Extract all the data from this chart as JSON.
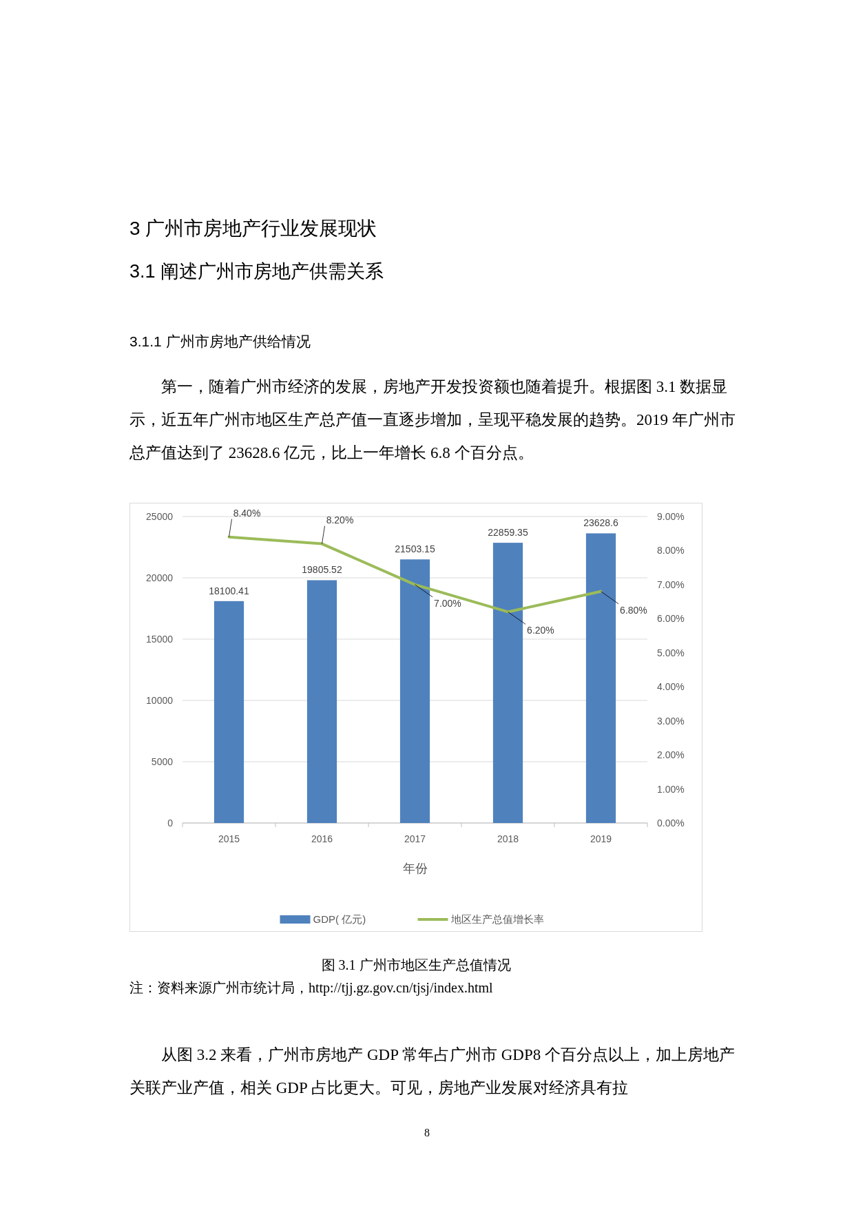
{
  "chart_data": {
    "type": "bar",
    "title": "图 3.1 广州市地区生产总值情况",
    "xlabel": "年份",
    "categories": [
      "2015",
      "2016",
      "2017",
      "2018",
      "2019"
    ],
    "series": [
      {
        "name": "GDP( 亿元)",
        "color": "#4f81bd",
        "values": [
          18100.41,
          19805.52,
          21503.15,
          22859.35,
          23628.6
        ],
        "value_labels": [
          "18100.41",
          "19805.52",
          "21503.15",
          "22859.35",
          "23628.6"
        ]
      },
      {
        "name": "地区生产总值增长率",
        "type": "line",
        "axis": "y2",
        "color": "#9bbb59",
        "values": [
          8.4,
          8.2,
          7.0,
          6.2,
          6.8
        ],
        "value_labels": [
          "8.40%",
          "8.20%",
          "7.00%",
          "6.20%",
          "6.80%"
        ]
      }
    ],
    "ylim": [
      0,
      25000
    ],
    "yticks": [
      0,
      5000,
      10000,
      15000,
      20000,
      25000
    ],
    "y2lim": [
      0,
      9
    ],
    "y2ticks": [
      {
        "value": 0,
        "label": "0.00%"
      },
      {
        "value": 1,
        "label": "1.00%"
      },
      {
        "value": 2,
        "label": "2.00%"
      },
      {
        "value": 3,
        "label": "3.00%"
      },
      {
        "value": 4,
        "label": "4.00%"
      },
      {
        "value": 5,
        "label": "5.00%"
      },
      {
        "value": 6,
        "label": "6.00%"
      },
      {
        "value": 7,
        "label": "7.00%"
      },
      {
        "value": 8,
        "label": "8.00%"
      },
      {
        "value": 9,
        "label": "9.00%"
      }
    ],
    "grid": "y",
    "legend": "bottom",
    "marker": "none",
    "annotations": [
      "3 广州市房地产行业发展现状",
      "3.1 阐述广州市房地产供需关系",
      "3.1.1 广州市房地产供给情况",
      "第一，随着广州市经济的发展，房地产开发投资额也随着提升。根据图 3.1 数据显示，近五年广州市地区生产总产值一直逐步增加，呈现平稳发展的趋势。2019 年广州市总产值达到了 23628.6 亿元，比上一年增长 6.8 个百分点。",
      "注：资料来源广州市统计局，http://tjj.gz.gov.cn/tjsj/index.html",
      "从图 3.2 来看，广州市房地产 GDP 常年占广州市 GDP8 个百分点以上，加上房地产关联产业产值，相关 GDP 占比更大。可见，房地产业发展对经济具有拉",
      "8"
    ]
  }
}
